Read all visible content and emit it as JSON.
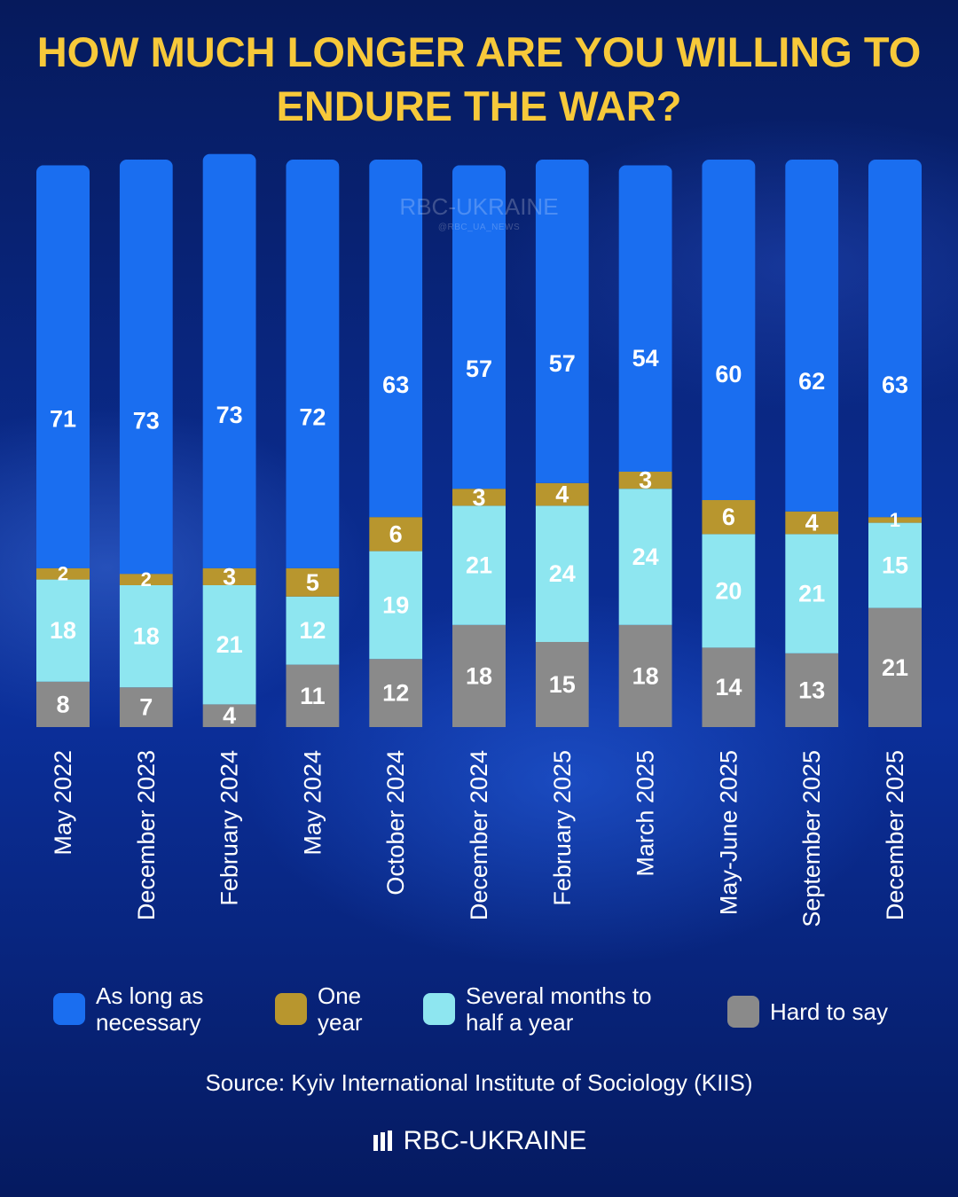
{
  "title": "HOW MUCH LONGER ARE YOU WILLING TO ENDURE THE WAR?",
  "watermark": {
    "name": "RBC-UKRAINE",
    "handle": "@RBC_UA_NEWS"
  },
  "colors": {
    "as_long": "#1a6ef0",
    "one_year": "#b8962e",
    "months": "#8ee6f0",
    "hard": "#8a8a8a",
    "title": "#f7c93a"
  },
  "chart_data": {
    "type": "bar",
    "stacked": true,
    "title": "HOW MUCH LONGER ARE YOU WILLING TO ENDURE THE WAR?",
    "categories": [
      "May 2022",
      "December 2023",
      "February 2024",
      "May 2024",
      "October 2024",
      "December 2024",
      "February 2025",
      "March 2025",
      "May-June 2025",
      "September 2025",
      "December 2025"
    ],
    "series": [
      {
        "key": "hard",
        "name": "Hard to say",
        "values": [
          8,
          7,
          4,
          11,
          12,
          18,
          15,
          18,
          14,
          13,
          21
        ]
      },
      {
        "key": "months",
        "name": "Several months to half a year",
        "values": [
          18,
          18,
          21,
          12,
          19,
          21,
          24,
          24,
          20,
          21,
          15
        ]
      },
      {
        "key": "one_year",
        "name": "One year",
        "values": [
          2,
          2,
          3,
          5,
          6,
          3,
          4,
          3,
          6,
          4,
          1
        ]
      },
      {
        "key": "as_long",
        "name": "As long as necessary",
        "values": [
          71,
          73,
          73,
          72,
          63,
          57,
          57,
          54,
          60,
          62,
          63
        ]
      }
    ],
    "ylim": [
      0,
      100
    ],
    "xlabel": "",
    "ylabel": ""
  },
  "legend": [
    {
      "key": "as_long",
      "label": "As long as\nnecessary"
    },
    {
      "key": "one_year",
      "label": "One\nyear"
    },
    {
      "key": "months",
      "label": "Several months to\nhalf a year"
    },
    {
      "key": "hard",
      "label": "Hard to say"
    }
  ],
  "source": "Source: Kyiv International Institute of Sociology (KIIS)",
  "brand": "RBC-UKRAINE"
}
